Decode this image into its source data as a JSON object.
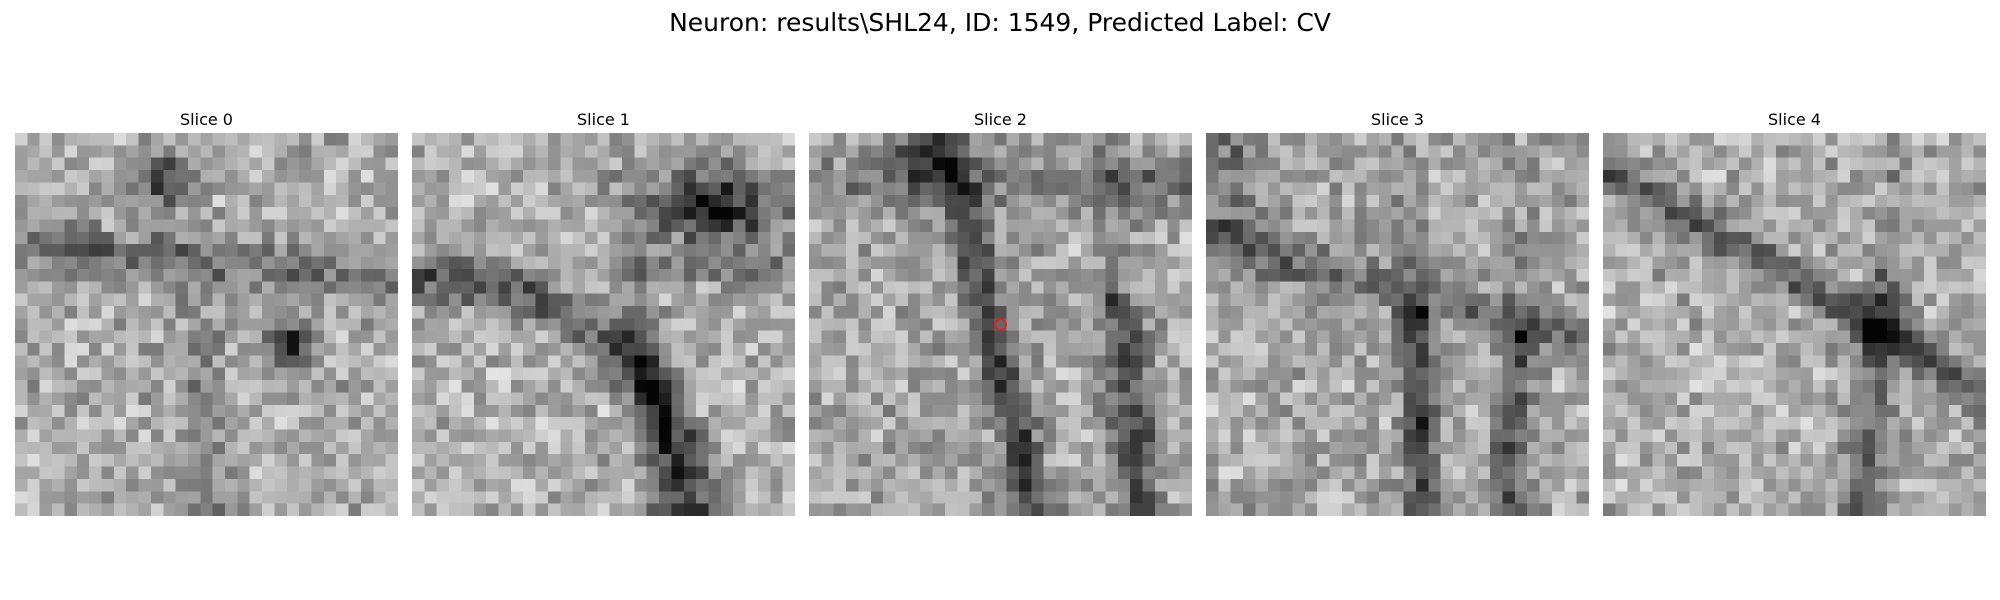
{
  "figure": {
    "title": "Neuron: results\\SHL24, ID: 1549, Predicted Label: CV"
  },
  "panels": [
    {
      "title": "Slice 0"
    },
    {
      "title": "Slice 1"
    },
    {
      "title": "Slice 2"
    },
    {
      "title": "Slice 3"
    },
    {
      "title": "Slice 4"
    }
  ],
  "image": {
    "colormap": "grayscale",
    "grid_size": 31
  },
  "marker": {
    "slice": 2,
    "color": "#d62728",
    "shape": "circle"
  }
}
